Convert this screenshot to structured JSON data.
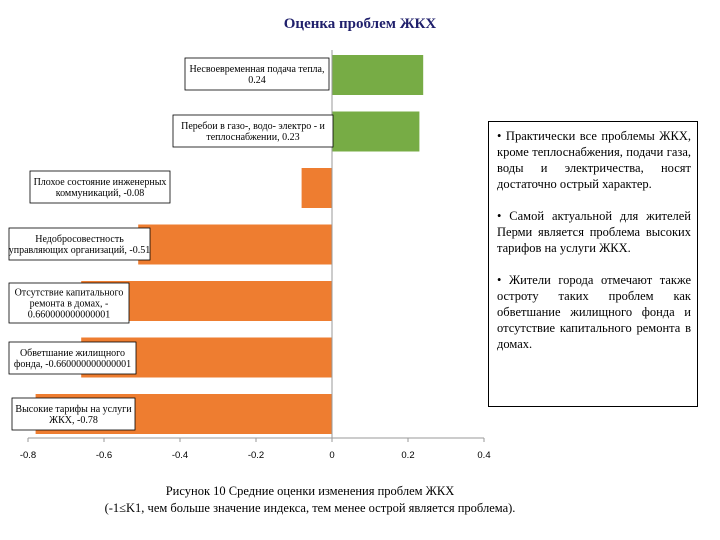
{
  "chart_data": {
    "type": "bar",
    "orientation": "horizontal",
    "title": "Оценка проблем ЖКХ",
    "categories": [
      "Несвоевременная подача тепла, 0.24",
      "Перебои в газо-, водо- электро - и теплоснабжении, 0.23",
      "Плохое состояние инженерных коммуникаций, -0.08",
      "Недобросовестность управляющих организаций, -0.51",
      "Отсутствие капитального ремонта в домах, -0.660000000000001",
      "Обветшание жилищного фонда, -0.660000000000001",
      "Высокие тарифы на услуги ЖКХ, -0.78"
    ],
    "values": [
      0.24,
      0.23,
      -0.08,
      -0.51,
      -0.66,
      -0.66,
      -0.78
    ],
    "colors": [
      "#77ac45",
      "#77ac45",
      "#ee7d30",
      "#ee7d30",
      "#ee7d30",
      "#ee7d30",
      "#ee7d30"
    ],
    "xlim": [
      -0.8,
      0.4
    ],
    "xticks": [
      -0.8,
      -0.6,
      -0.4,
      -0.2,
      0,
      0.2,
      0.4
    ],
    "xtick_labels": [
      "-0.8",
      "-0.6",
      "-0.4",
      "-0.2",
      "0",
      "0.2",
      "0.4"
    ],
    "grid": false,
    "legend": "none"
  },
  "labels": [
    [
      "Несвоевременная подача тепла,",
      "0.24"
    ],
    [
      "Перебои в газо-, водо- электро - и",
      "теплоснабжении, 0.23"
    ],
    [
      "Плохое состояние инженерных",
      "коммуникаций, -0.08"
    ],
    [
      "Недобросовестность",
      "управляющих организаций, -0.51"
    ],
    [
      "Отсутствие капитального",
      "ремонта в домах, -",
      "0.660000000000001"
    ],
    [
      "Обветшание жилищного",
      "фонда, -0.660000000000001"
    ],
    [
      "Высокие тарифы на услуги",
      "ЖКХ, -0.78"
    ]
  ],
  "note": {
    "items": [
      "• Практически все проблемы ЖКХ, кроме теплоснабжения, подачи газа, воды и электричества, носят достаточно острый характер.",
      "• Самой актуальной для жителей Перми является проблема высоких тарифов на услуги ЖКХ.",
      "• Жители города отмечают также остроту таких проблем как обветшание жилищного фонда и отсутствие капитального ремонта в домах."
    ]
  },
  "caption": {
    "line1": "Рисунок 10 Средние оценки изменения проблем ЖКХ",
    "line2": "(-1≤K1, чем больше значение индекса, тем менее острой является проблема)."
  }
}
